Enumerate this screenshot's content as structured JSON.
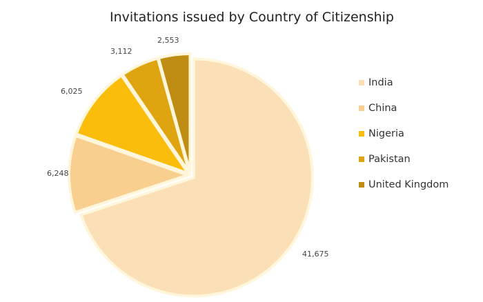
{
  "chart_data": {
    "type": "pie",
    "title": "Invitations issued by Country of Citizenship",
    "slices": [
      {
        "label": "India",
        "value": 41675,
        "display": "41,675",
        "color": "#fbdfb6"
      },
      {
        "label": "China",
        "value": 6248,
        "display": "6,248",
        "color": "#f9cf8f"
      },
      {
        "label": "Nigeria",
        "value": 6025,
        "display": "6,025",
        "color": "#fbbd0c"
      },
      {
        "label": "Pakistan",
        "value": 3112,
        "display": "3,112",
        "color": "#dea510"
      },
      {
        "label": "United Kingdom",
        "value": 2553,
        "display": "2,553",
        "color": "#bf8d14"
      }
    ],
    "legend_position": "right",
    "start": "12 o'clock, clockwise"
  }
}
